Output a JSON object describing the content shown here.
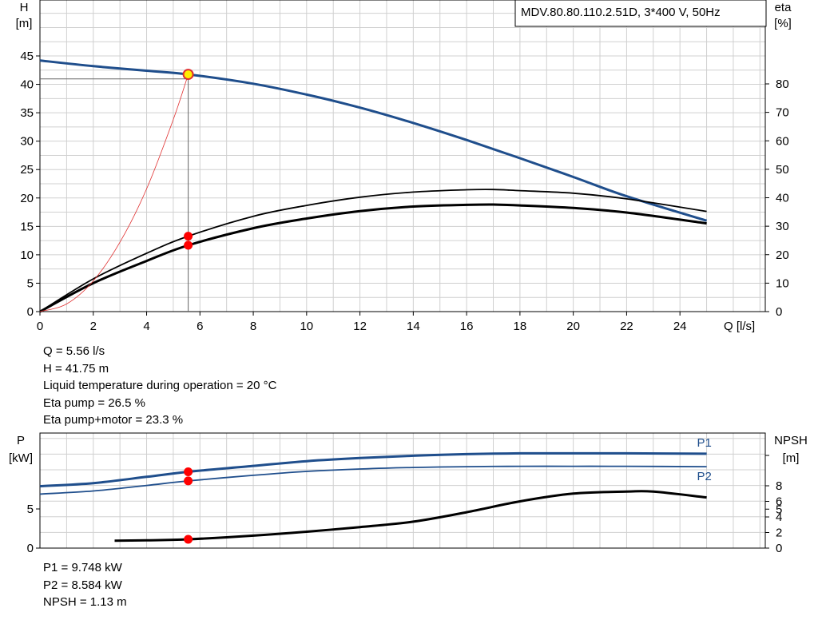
{
  "header": {
    "title": "MDV.80.80.110.2.51D, 3*400 V, 50Hz"
  },
  "chart_data": [
    {
      "type": "line",
      "xlabel": "Q [l/s]",
      "ylabel_left": [
        "H",
        "[m]"
      ],
      "ylabel_right": [
        "eta",
        "[%]"
      ],
      "xlim": [
        0,
        27.2
      ],
      "ylim_left": [
        0,
        50
      ],
      "ylim_right": [
        0,
        100
      ],
      "xticks": [
        0,
        2,
        4,
        6,
        8,
        10,
        12,
        14,
        16,
        18,
        20,
        22,
        24
      ],
      "yticks_left": [
        0,
        5,
        10,
        15,
        20,
        25,
        30,
        35,
        40,
        45
      ],
      "yticks_right": [
        0,
        10,
        20,
        30,
        40,
        50,
        60,
        70,
        80
      ],
      "grid": true,
      "series": [
        {
          "color": "#1f4e8c",
          "axis": "left",
          "x": [
            0,
            2,
            4,
            5.56,
            8,
            10,
            12,
            14,
            16,
            18,
            20,
            22,
            25
          ],
          "values": [
            44.2,
            43.2,
            42.4,
            41.75,
            40.1,
            38.2,
            35.9,
            33.2,
            30.2,
            27.0,
            23.7,
            20.3,
            16.0
          ]
        },
        {
          "color": "#000000",
          "axis": "right",
          "x": [
            0,
            2,
            4,
            5.56,
            8,
            10,
            12,
            14,
            16,
            17,
            18,
            20,
            22,
            25
          ],
          "values": [
            0,
            11.5,
            20.5,
            26.5,
            33.5,
            37.3,
            40.2,
            42.0,
            42.8,
            42.9,
            42.5,
            41.6,
            39.6,
            35.2
          ]
        },
        {
          "color": "#000000",
          "axis": "right",
          "thick": true,
          "x": [
            0,
            2,
            4,
            5.56,
            8,
            10,
            12,
            14,
            16,
            17,
            18,
            20,
            22,
            25
          ],
          "values": [
            0,
            10.0,
            17.8,
            23.3,
            29.3,
            32.7,
            35.3,
            36.9,
            37.5,
            37.6,
            37.3,
            36.4,
            34.8,
            31.0
          ]
        },
        {
          "color": "#e03030",
          "axis": "left",
          "thin": true,
          "x": [
            0,
            1,
            2,
            3,
            4,
            5,
            5.56
          ],
          "values": [
            0,
            1.35,
            5.4,
            12.2,
            21.6,
            33.8,
            41.75
          ]
        }
      ],
      "operating_point": {
        "x": 5.56,
        "y": 41.75
      },
      "markers": [
        {
          "x": 5.56,
          "axis": "right",
          "y": 26.5
        },
        {
          "x": 5.56,
          "axis": "right",
          "y": 23.3
        }
      ]
    },
    {
      "type": "line",
      "ylabel_left": [
        "P",
        "[kW]"
      ],
      "ylabel_right": [
        "NPSH",
        "[m]"
      ],
      "xlim": [
        0,
        27.2
      ],
      "ylim_left": [
        0,
        15
      ],
      "ylim_right": [
        0,
        16
      ],
      "yticks_left": [
        0,
        5
      ],
      "yticks_right": [
        0,
        2,
        4,
        5,
        6,
        8
      ],
      "grid": true,
      "series": [
        {
          "name": "P1",
          "color": "#1f4e8c",
          "axis": "left",
          "thick": true,
          "x": [
            0,
            2,
            4,
            5.56,
            8,
            10,
            12,
            14,
            16,
            18,
            20,
            22,
            25
          ],
          "values": [
            7.9,
            8.3,
            9.1,
            9.748,
            10.5,
            11.1,
            11.5,
            11.8,
            12.0,
            12.1,
            12.1,
            12.1,
            12.05
          ]
        },
        {
          "name": "P2",
          "color": "#1f4e8c",
          "axis": "left",
          "x": [
            0,
            2,
            4,
            5.56,
            8,
            10,
            12,
            14,
            16,
            18,
            20,
            22,
            25
          ],
          "values": [
            6.9,
            7.3,
            8.0,
            8.584,
            9.3,
            9.8,
            10.1,
            10.3,
            10.4,
            10.45,
            10.45,
            10.45,
            10.4
          ]
        },
        {
          "name": "NPSH",
          "color": "#000000",
          "axis": "right",
          "thick": true,
          "x": [
            2.8,
            4,
            5.56,
            8,
            10,
            12,
            14,
            16,
            18,
            20,
            22,
            23,
            25
          ],
          "values": [
            0.95,
            1.0,
            1.13,
            1.6,
            2.1,
            2.7,
            3.4,
            4.6,
            6.0,
            7.0,
            7.25,
            7.25,
            6.5
          ]
        }
      ],
      "markers": [
        {
          "x": 5.56,
          "axis": "left",
          "y": 9.748
        },
        {
          "x": 5.56,
          "axis": "left",
          "y": 8.584
        },
        {
          "x": 5.56,
          "axis": "right",
          "y": 1.13
        }
      ]
    }
  ],
  "info_top": [
    "Q = 5.56 l/s",
    "H = 41.75 m",
    "Liquid temperature during operation = 20 °C",
    "Eta pump = 26.5 %",
    "Eta pump+motor = 23.3 %"
  ],
  "info_bottom": [
    "P1 = 9.748 kW",
    "P2 = 8.584 kW",
    "NPSH = 1.13 m"
  ]
}
